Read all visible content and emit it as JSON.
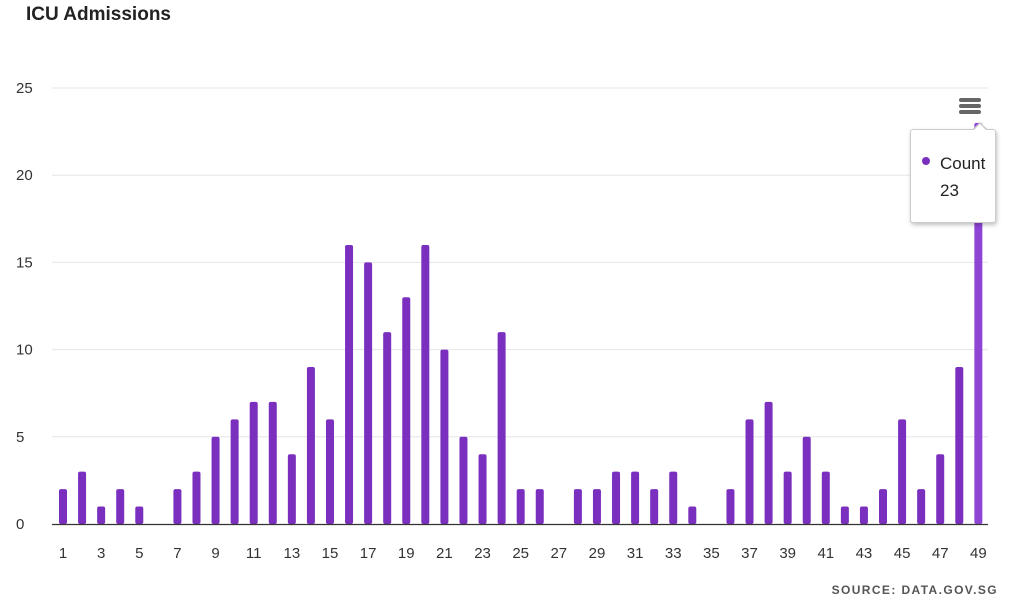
{
  "title": "ICU Admissions",
  "source": "SOURCE: DATA.GOV.SG",
  "colors": {
    "bar": "#7b2fbe",
    "bar_highlight": "#8e45d6",
    "grid": "#e6e6e6",
    "axis": "#333333"
  },
  "menu": {
    "icon": "hamburger-menu-icon"
  },
  "tooltip": {
    "series": "Count",
    "value": "23"
  },
  "chart_data": {
    "type": "bar",
    "x": [
      1,
      2,
      3,
      4,
      5,
      6,
      7,
      8,
      9,
      10,
      11,
      12,
      13,
      14,
      15,
      16,
      17,
      18,
      19,
      20,
      21,
      22,
      23,
      24,
      25,
      26,
      27,
      28,
      29,
      30,
      31,
      32,
      33,
      34,
      35,
      36,
      37,
      38,
      39,
      40,
      41,
      42,
      43,
      44,
      45,
      46,
      47,
      48,
      49
    ],
    "x_tick_labels": [
      "1",
      "3",
      "5",
      "7",
      "9",
      "11",
      "13",
      "15",
      "17",
      "19",
      "21",
      "23",
      "25",
      "27",
      "29",
      "31",
      "33",
      "35",
      "37",
      "39",
      "41",
      "43",
      "45",
      "47",
      "49"
    ],
    "series": [
      {
        "name": "Count",
        "values": [
          2,
          3,
          1,
          2,
          1,
          0,
          2,
          3,
          5,
          6,
          7,
          7,
          4,
          9,
          6,
          16,
          15,
          11,
          13,
          16,
          10,
          5,
          4,
          11,
          2,
          2,
          0,
          2,
          2,
          3,
          3,
          2,
          3,
          1,
          0,
          2,
          6,
          7,
          3,
          5,
          3,
          1,
          1,
          2,
          6,
          2,
          4,
          9,
          23
        ]
      }
    ],
    "highlighted_index": 48,
    "ylim": [
      0,
      25
    ],
    "y_ticks": [
      0,
      5,
      10,
      15,
      20,
      25
    ],
    "grid": true,
    "legend": "none"
  }
}
